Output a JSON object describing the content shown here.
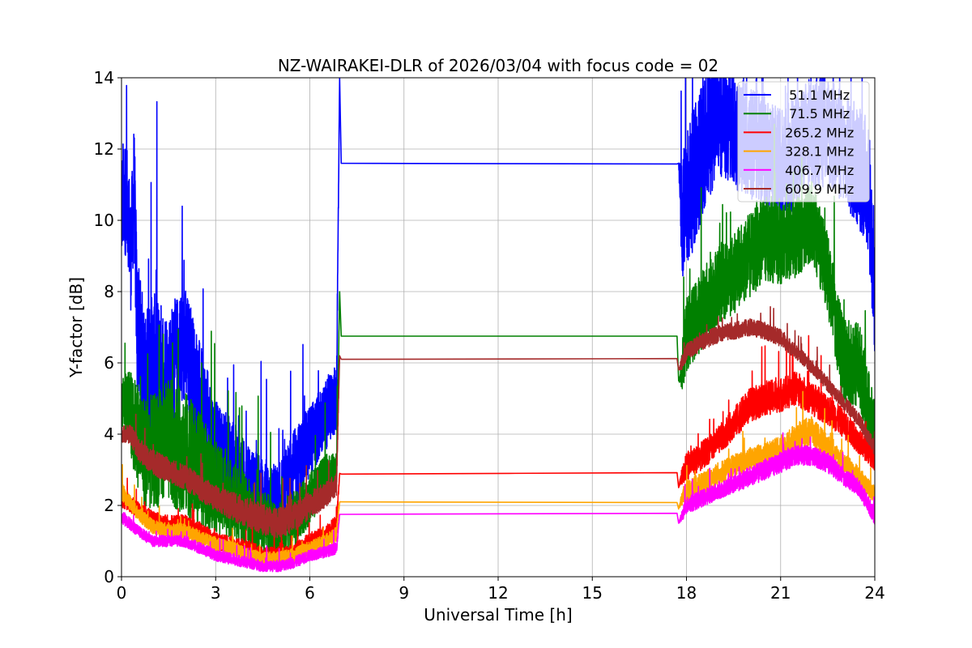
{
  "chart_data": {
    "type": "line",
    "title": "NZ-WAIRAKEI-DLR of 2026/03/04 with focus code = 02",
    "xlabel": "Universal Time [h]",
    "ylabel": "Y-factor [dB]",
    "xlim": [
      0,
      24
    ],
    "ylim": [
      0,
      14
    ],
    "xticks": [
      0,
      3,
      6,
      9,
      12,
      15,
      18,
      21,
      24
    ],
    "xtick_labels": [
      "0",
      "3",
      "6",
      "9",
      "12",
      "15",
      "18",
      "21",
      "24"
    ],
    "yticks": [
      0,
      2,
      4,
      6,
      8,
      10,
      12,
      14
    ],
    "ytick_labels": [
      "0",
      "2",
      "4",
      "6",
      "8",
      "10",
      "12",
      "14"
    ],
    "grid": true,
    "legend_position": "top-right",
    "series": [
      {
        "name": "51.1 MHz",
        "legend_label": "  51.1 MHz",
        "color": "#0000ff",
        "x": [
          0,
          0.05,
          0.1,
          0.2,
          0.3,
          0.4,
          0.5,
          0.75,
          1.0,
          1.5,
          2.0,
          2.5,
          3.0,
          3.5,
          4.0,
          4.5,
          5.0,
          5.5,
          6.0,
          6.5,
          6.85,
          6.95,
          7.0,
          17.7,
          17.75,
          17.85,
          18.0,
          18.5,
          19.0,
          19.5,
          20.0,
          20.5,
          21.0,
          21.5,
          22.0,
          22.5,
          23.0,
          23.5,
          23.8,
          24.0
        ],
        "y": [
          10.0,
          10.8,
          9.8,
          10.5,
          9.0,
          11.0,
          7.0,
          5.5,
          6.0,
          5.5,
          6.5,
          5.0,
          3.5,
          3.2,
          2.5,
          2.2,
          2.0,
          3.0,
          3.8,
          4.5,
          5.0,
          14.0,
          11.6,
          11.58,
          11.6,
          10.0,
          10.5,
          12.0,
          13.0,
          12.5,
          12.2,
          12.0,
          11.5,
          12.0,
          12.5,
          12.5,
          12.0,
          11.5,
          11.0,
          8.0
        ],
        "noise": [
          1.6,
          2.0,
          2.2,
          2.0,
          2.0,
          2.3,
          2.5,
          2.5,
          2.5,
          2.5,
          2.2,
          2.0,
          1.8,
          1.6,
          1.5,
          1.5,
          1.4,
          1.4,
          1.3,
          1.2,
          1.2,
          0,
          0,
          0,
          0,
          2.2,
          2.5,
          2.4,
          2.2,
          2.0,
          2.0,
          2.0,
          2.0,
          2.0,
          2.0,
          2.0,
          2.0,
          2.2,
          2.4,
          2.4
        ]
      },
      {
        "name": "71.5 MHz",
        "legend_label": "  71.5 MHz",
        "color": "#008000",
        "x": [
          0,
          0.1,
          0.3,
          0.5,
          0.75,
          1.0,
          1.5,
          2.0,
          2.5,
          3.0,
          3.5,
          4.0,
          4.5,
          5.0,
          5.5,
          6.0,
          6.5,
          6.85,
          6.95,
          7.0,
          17.7,
          17.75,
          17.85,
          18.0,
          18.5,
          19.0,
          19.5,
          20.0,
          20.5,
          21.0,
          21.5,
          22.0,
          22.5,
          23.0,
          23.5,
          24.0
        ],
        "y": [
          4.8,
          5.0,
          4.5,
          4.0,
          3.5,
          3.5,
          3.8,
          3.5,
          3.0,
          2.5,
          2.2,
          1.8,
          1.5,
          1.3,
          1.6,
          2.2,
          2.8,
          3.0,
          8.0,
          6.75,
          6.75,
          5.5,
          5.8,
          6.8,
          7.5,
          8.2,
          8.5,
          9.0,
          9.5,
          9.3,
          9.5,
          10.0,
          8.5,
          6.0,
          6.0,
          4.0
        ],
        "noise": [
          0.8,
          1.0,
          1.6,
          1.8,
          2.0,
          2.0,
          2.2,
          2.2,
          2.0,
          1.6,
          1.4,
          1.3,
          1.2,
          1.0,
          1.0,
          0.9,
          0.8,
          0.6,
          0,
          0,
          0,
          0,
          0.8,
          1.3,
          1.4,
          1.4,
          1.4,
          1.5,
          1.5,
          1.4,
          1.4,
          1.4,
          1.4,
          1.5,
          1.5,
          1.2
        ]
      },
      {
        "name": "265.2 MHz",
        "legend_label": " 265.2 MHz",
        "color": "#ff0000",
        "x": [
          0,
          0.5,
          1.0,
          1.5,
          2.0,
          2.5,
          3.0,
          3.5,
          4.0,
          4.5,
          5.0,
          5.5,
          6.0,
          6.5,
          6.85,
          6.95,
          7.0,
          17.7,
          17.75,
          17.85,
          18.0,
          18.5,
          19.0,
          19.5,
          20.0,
          20.5,
          21.0,
          21.5,
          22.0,
          22.5,
          23.0,
          23.5,
          24.0
        ],
        "y": [
          2.2,
          1.9,
          1.6,
          1.5,
          1.5,
          1.3,
          1.0,
          0.9,
          0.8,
          0.6,
          0.6,
          0.7,
          1.0,
          1.2,
          1.5,
          2.9,
          2.88,
          2.92,
          2.5,
          2.8,
          3.1,
          3.4,
          3.8,
          4.3,
          4.8,
          5.0,
          5.1,
          5.3,
          5.0,
          4.7,
          4.3,
          3.8,
          3.3
        ],
        "noise": [
          0.3,
          0.3,
          0.3,
          0.3,
          0.3,
          0.3,
          0.3,
          0.3,
          0.3,
          0.3,
          0.3,
          0.3,
          0.3,
          0.3,
          0.3,
          0,
          0,
          0,
          0,
          0.3,
          0.5,
          0.5,
          0.5,
          0.55,
          0.6,
          0.6,
          0.6,
          0.6,
          0.6,
          0.55,
          0.5,
          0.45,
          0.4
        ]
      },
      {
        "name": "328.1 MHz",
        "legend_label": " 328.1 MHz",
        "color": "#ffa500",
        "x": [
          0,
          0.5,
          1.0,
          1.5,
          2.0,
          2.5,
          3.0,
          3.5,
          4.0,
          4.5,
          5.0,
          5.5,
          6.0,
          6.5,
          6.85,
          6.95,
          7.0,
          17.7,
          17.75,
          17.85,
          18.0,
          18.5,
          19.0,
          19.5,
          20.0,
          20.5,
          21.0,
          21.5,
          22.0,
          22.5,
          23.0,
          23.5,
          24.0
        ],
        "y": [
          2.4,
          1.8,
          1.4,
          1.3,
          1.3,
          1.1,
          0.9,
          0.8,
          0.6,
          0.5,
          0.5,
          0.6,
          0.8,
          1.0,
          1.2,
          2.1,
          2.1,
          2.08,
          1.9,
          2.2,
          2.4,
          2.6,
          2.9,
          3.1,
          3.3,
          3.4,
          3.6,
          3.9,
          4.1,
          3.6,
          3.2,
          2.8,
          2.3
        ],
        "noise": [
          0.3,
          0.25,
          0.25,
          0.25,
          0.25,
          0.25,
          0.25,
          0.25,
          0.25,
          0.25,
          0.25,
          0.25,
          0.25,
          0.25,
          0.25,
          0,
          0,
          0,
          0,
          0.25,
          0.4,
          0.4,
          0.4,
          0.4,
          0.4,
          0.45,
          0.45,
          0.5,
          0.55,
          0.45,
          0.4,
          0.35,
          0.3
        ]
      },
      {
        "name": "406.7 MHz",
        "legend_label": " 406.7 MHz",
        "color": "#ff00ff",
        "x": [
          0,
          0.5,
          1.0,
          1.5,
          2.0,
          2.5,
          3.0,
          3.5,
          4.0,
          4.5,
          5.0,
          5.5,
          6.0,
          6.5,
          6.85,
          6.95,
          7.0,
          17.7,
          17.75,
          17.85,
          18.0,
          18.5,
          19.0,
          19.5,
          20.0,
          20.5,
          21.0,
          21.5,
          22.0,
          22.5,
          23.0,
          23.5,
          24.0
        ],
        "y": [
          1.7,
          1.3,
          1.0,
          1.0,
          1.0,
          0.8,
          0.6,
          0.5,
          0.4,
          0.3,
          0.3,
          0.4,
          0.6,
          0.7,
          0.8,
          1.75,
          1.75,
          1.78,
          1.5,
          1.7,
          2.0,
          2.2,
          2.4,
          2.6,
          2.8,
          3.0,
          3.2,
          3.4,
          3.4,
          3.2,
          2.8,
          2.5,
          1.7
        ],
        "noise": [
          0.25,
          0.2,
          0.2,
          0.2,
          0.2,
          0.2,
          0.2,
          0.2,
          0.2,
          0.2,
          0.2,
          0.2,
          0.2,
          0.2,
          0.2,
          0,
          0,
          0,
          0,
          0.2,
          0.3,
          0.3,
          0.3,
          0.3,
          0.35,
          0.35,
          0.35,
          0.35,
          0.35,
          0.35,
          0.3,
          0.3,
          0.3
        ]
      },
      {
        "name": "609.9 MHz",
        "legend_label": " 609.9 MHz",
        "color": "#a52a2a",
        "x": [
          0,
          0.3,
          0.5,
          1.0,
          1.5,
          2.0,
          2.5,
          3.0,
          3.5,
          4.0,
          4.5,
          5.0,
          5.5,
          6.0,
          6.5,
          6.85,
          6.95,
          7.0,
          17.7,
          17.75,
          17.85,
          18.0,
          18.5,
          19.0,
          19.5,
          20.0,
          20.5,
          21.0,
          21.5,
          22.0,
          22.5,
          23.0,
          23.5,
          24.0
        ],
        "y": [
          4.0,
          4.0,
          3.6,
          3.2,
          3.0,
          2.8,
          2.5,
          2.2,
          2.0,
          1.8,
          1.6,
          1.5,
          1.7,
          2.0,
          2.3,
          2.6,
          6.2,
          6.1,
          6.12,
          5.8,
          6.0,
          6.3,
          6.6,
          6.8,
          6.9,
          7.0,
          6.9,
          6.7,
          6.3,
          5.9,
          5.4,
          4.9,
          4.4,
          3.6
        ],
        "noise": [
          0.3,
          0.35,
          0.4,
          0.45,
          0.45,
          0.45,
          0.45,
          0.45,
          0.5,
          0.55,
          0.55,
          0.55,
          0.55,
          0.5,
          0.45,
          0.4,
          0,
          0,
          0,
          0,
          0.25,
          0.3,
          0.3,
          0.3,
          0.3,
          0.3,
          0.3,
          0.3,
          0.25,
          0.25,
          0.25,
          0.25,
          0.25,
          0.25
        ]
      }
    ]
  }
}
